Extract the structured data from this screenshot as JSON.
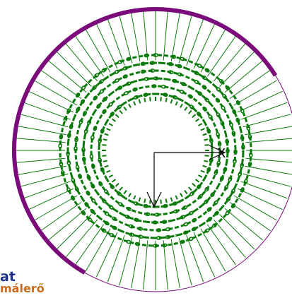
{
  "colors": {
    "background": "#ffffff",
    "winding": "#0a7a0a",
    "outer_border": "#7b0a7b",
    "axes": "#000000",
    "title_text": "#1b2f8a",
    "subtitle_text": "#c86a1a"
  },
  "drawing": {
    "axis_label": "X",
    "rings": 6,
    "slots": 72
  },
  "corner": {
    "title": "at",
    "subtitle": "málerő"
  }
}
